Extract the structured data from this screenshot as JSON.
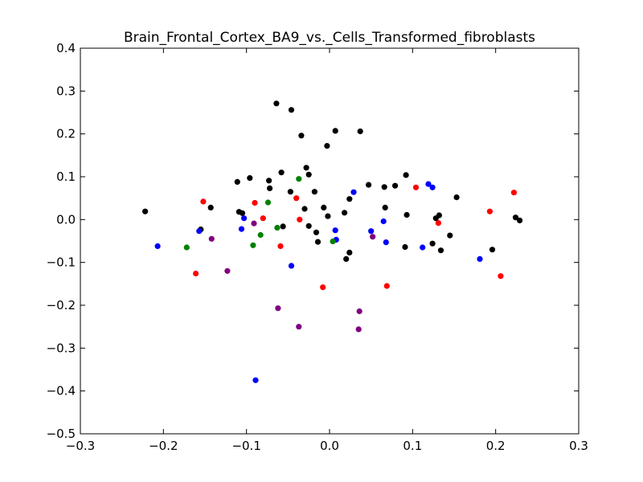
{
  "chart_data": {
    "type": "scatter",
    "title": "Brain_Frontal_Cortex_BA9_vs._Cells_Transformed_fibroblasts",
    "xlabel": "",
    "ylabel": "",
    "xlim": [
      -0.3,
      0.3
    ],
    "ylim": [
      -0.5,
      0.4
    ],
    "xticks": [
      -0.3,
      -0.2,
      -0.1,
      0.0,
      0.1,
      0.2,
      0.3
    ],
    "yticks": [
      -0.5,
      -0.4,
      -0.3,
      -0.2,
      -0.1,
      0.0,
      0.1,
      0.2,
      0.3,
      0.4
    ],
    "xtick_labels": [
      "−0.3",
      "−0.2",
      "−0.1",
      "0.0",
      "0.1",
      "0.2",
      "0.3"
    ],
    "ytick_labels": [
      "−0.5",
      "−0.4",
      "−0.3",
      "−0.2",
      "−0.1",
      "0.0",
      "0.1",
      "0.2",
      "0.3",
      "0.4"
    ],
    "grid": false,
    "series": [
      {
        "color": "#000000",
        "points": [
          [
            -0.222,
            0.019
          ],
          [
            -0.155,
            -0.023
          ],
          [
            -0.143,
            0.028
          ],
          [
            -0.111,
            0.088
          ],
          [
            -0.109,
            0.018
          ],
          [
            -0.105,
            0.015
          ],
          [
            -0.096,
            0.097
          ],
          [
            -0.072,
            0.073
          ],
          [
            -0.073,
            0.091
          ],
          [
            -0.058,
            0.11
          ],
          [
            -0.056,
            -0.016
          ],
          [
            -0.047,
            0.065
          ],
          [
            -0.064,
            0.271
          ],
          [
            -0.046,
            0.256
          ],
          [
            -0.034,
            0.196
          ],
          [
            -0.028,
            0.121
          ],
          [
            -0.025,
            0.105
          ],
          [
            -0.03,
            0.025
          ],
          [
            -0.025,
            -0.015
          ],
          [
            -0.018,
            0.065
          ],
          [
            -0.016,
            -0.03
          ],
          [
            -0.014,
            -0.052
          ],
          [
            -0.007,
            0.028
          ],
          [
            -0.003,
            0.172
          ],
          [
            -0.002,
            0.008
          ],
          [
            0.007,
            0.207
          ],
          [
            0.018,
            0.016
          ],
          [
            0.024,
            0.048
          ],
          [
            0.02,
            -0.092
          ],
          [
            0.024,
            -0.077
          ],
          [
            0.037,
            0.206
          ],
          [
            0.047,
            0.081
          ],
          [
            0.066,
            0.076
          ],
          [
            0.067,
            0.028
          ],
          [
            0.079,
            0.079
          ],
          [
            0.092,
            0.104
          ],
          [
            0.093,
            0.011
          ],
          [
            0.091,
            -0.064
          ],
          [
            0.124,
            -0.056
          ],
          [
            0.128,
            0.003
          ],
          [
            0.132,
            0.01
          ],
          [
            0.134,
            -0.072
          ],
          [
            0.145,
            -0.037
          ],
          [
            0.153,
            0.052
          ],
          [
            0.196,
            -0.07
          ],
          [
            0.224,
            0.005
          ],
          [
            0.229,
            -0.002
          ]
        ]
      },
      {
        "color": "#0000ff",
        "points": [
          [
            -0.207,
            -0.062
          ],
          [
            -0.157,
            -0.027
          ],
          [
            -0.103,
            0.003
          ],
          [
            -0.106,
            -0.022
          ],
          [
            -0.089,
            -0.375
          ],
          [
            -0.046,
            -0.108
          ],
          [
            0.007,
            -0.025
          ],
          [
            0.008,
            -0.047
          ],
          [
            0.029,
            0.064
          ],
          [
            0.05,
            -0.027
          ],
          [
            0.065,
            -0.004
          ],
          [
            0.068,
            -0.053
          ],
          [
            0.112,
            -0.065
          ],
          [
            0.119,
            0.083
          ],
          [
            0.124,
            0.075
          ],
          [
            0.181,
            -0.092
          ]
        ]
      },
      {
        "color": "#ff0000",
        "points": [
          [
            -0.161,
            -0.126
          ],
          [
            -0.152,
            0.042
          ],
          [
            -0.09,
            0.039
          ],
          [
            -0.08,
            0.003
          ],
          [
            -0.059,
            -0.062
          ],
          [
            -0.04,
            0.05
          ],
          [
            -0.036,
            0.0
          ],
          [
            -0.008,
            -0.158
          ],
          [
            0.069,
            -0.155
          ],
          [
            0.104,
            0.075
          ],
          [
            0.131,
            -0.008
          ],
          [
            0.193,
            0.019
          ],
          [
            0.206,
            -0.132
          ],
          [
            0.222,
            0.063
          ]
        ]
      },
      {
        "color": "#008000",
        "points": [
          [
            -0.172,
            -0.065
          ],
          [
            -0.092,
            -0.06
          ],
          [
            -0.083,
            -0.036
          ],
          [
            -0.074,
            0.04
          ],
          [
            -0.063,
            -0.019
          ],
          [
            -0.037,
            0.095
          ],
          [
            0.004,
            -0.051
          ]
        ]
      },
      {
        "color": "#800080",
        "points": [
          [
            -0.142,
            -0.045
          ],
          [
            -0.123,
            -0.12
          ],
          [
            -0.091,
            -0.009
          ],
          [
            -0.062,
            -0.207
          ],
          [
            -0.037,
            -0.25
          ],
          [
            0.036,
            -0.214
          ],
          [
            0.035,
            -0.256
          ],
          [
            0.052,
            -0.04
          ]
        ]
      }
    ]
  }
}
